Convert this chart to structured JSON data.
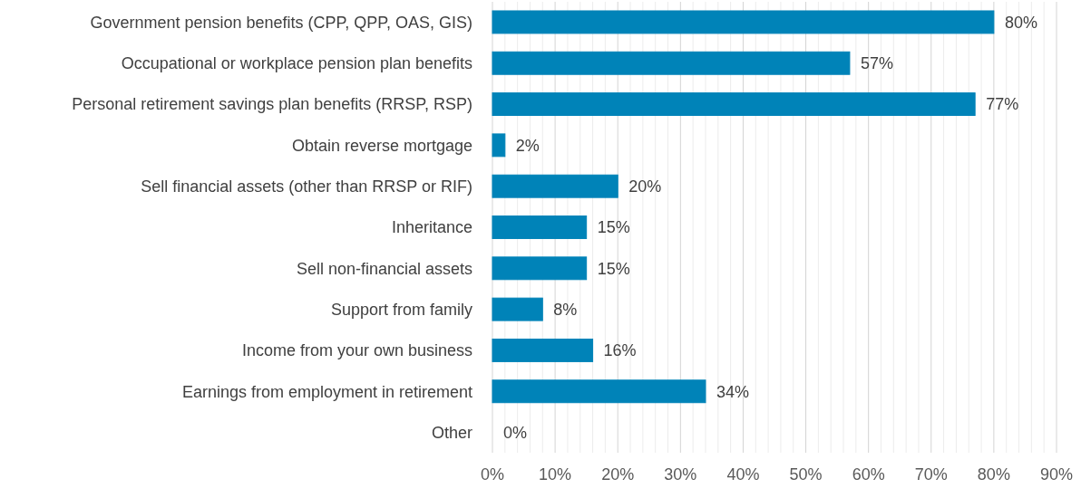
{
  "chart_data": {
    "type": "bar",
    "orientation": "horizontal",
    "categories": [
      "Government pension benefits (CPP, QPP, OAS, GIS)",
      "Occupational or workplace pension plan benefits",
      "Personal retirement savings plan benefits (RRSP, RSP)",
      "Obtain reverse mortgage",
      "Sell financial assets (other than RRSP or RIF)",
      "Inheritance",
      "Sell non-financial assets",
      "Support from family",
      "Income from your own business",
      "Earnings from employment in retirement",
      "Other"
    ],
    "values": [
      80,
      57,
      77,
      2,
      20,
      15,
      15,
      8,
      16,
      34,
      0
    ],
    "color": "#0083b8",
    "value_labels": [
      "80%",
      "57%",
      "77%",
      "2%",
      "20%",
      "15%",
      "15%",
      "8%",
      "16%",
      "34%",
      "0%"
    ],
    "xlim": [
      0,
      90
    ],
    "xticks": [
      {
        "value": 0,
        "label": "0%"
      },
      {
        "value": 2,
        "label": null
      },
      {
        "value": 4,
        "label": null
      },
      {
        "value": 6,
        "label": null
      },
      {
        "value": 8,
        "label": null
      },
      {
        "value": 10,
        "label": "10%"
      },
      {
        "value": 12,
        "label": null
      },
      {
        "value": 14,
        "label": null
      },
      {
        "value": 16,
        "label": null
      },
      {
        "value": 18,
        "label": null
      },
      {
        "value": 20,
        "label": "20%"
      },
      {
        "value": 22,
        "label": null
      },
      {
        "value": 24,
        "label": null
      },
      {
        "value": 26,
        "label": null
      },
      {
        "value": 28,
        "label": null
      },
      {
        "value": 30,
        "label": "30%"
      },
      {
        "value": 32,
        "label": null
      },
      {
        "value": 34,
        "label": null
      },
      {
        "value": 36,
        "label": null
      },
      {
        "value": 38,
        "label": null
      },
      {
        "value": 40,
        "label": "40%"
      },
      {
        "value": 42,
        "label": null
      },
      {
        "value": 44,
        "label": null
      },
      {
        "value": 46,
        "label": null
      },
      {
        "value": 48,
        "label": null
      },
      {
        "value": 50,
        "label": "50%"
      },
      {
        "value": 52,
        "label": null
      },
      {
        "value": 54,
        "label": null
      },
      {
        "value": 56,
        "label": null
      },
      {
        "value": 58,
        "label": null
      },
      {
        "value": 60,
        "label": "60%"
      },
      {
        "value": 62,
        "label": null
      },
      {
        "value": 64,
        "label": null
      },
      {
        "value": 66,
        "label": null
      },
      {
        "value": 68,
        "label": null
      },
      {
        "value": 70,
        "label": "70%"
      },
      {
        "value": 72,
        "label": null
      },
      {
        "value": 74,
        "label": null
      },
      {
        "value": 76,
        "label": null
      },
      {
        "value": 78,
        "label": null
      },
      {
        "value": 80,
        "label": "80%"
      },
      {
        "value": 82,
        "label": null
      },
      {
        "value": 84,
        "label": null
      },
      {
        "value": 86,
        "label": null
      },
      {
        "value": 88,
        "label": null
      },
      {
        "value": 90,
        "label": "90%"
      }
    ],
    "grid": "x"
  }
}
